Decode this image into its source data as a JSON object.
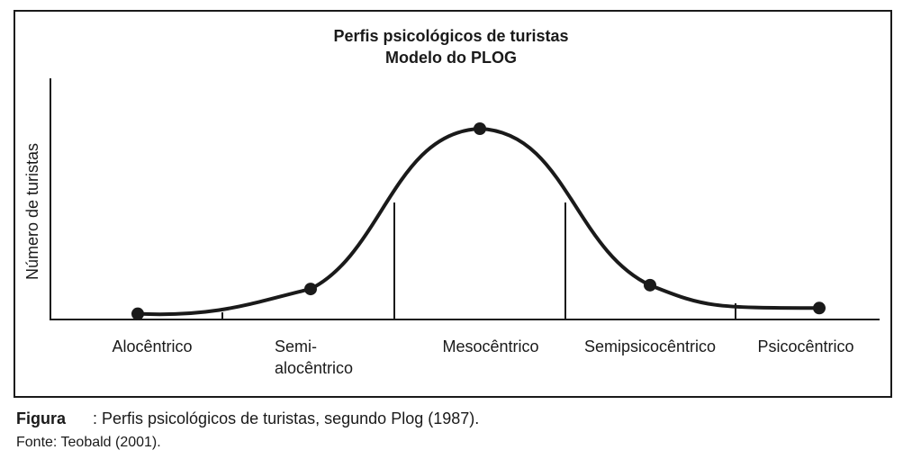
{
  "chart_data": {
    "type": "line",
    "title": "Perfis psicológicos de turistas",
    "subtitle": "Modelo do PLOG",
    "ylabel": "Número de turistas",
    "xlabel": "",
    "categories": [
      {
        "lines": [
          "Alocêntrico"
        ]
      },
      {
        "lines": [
          "Semi-",
          "alocêntrico"
        ]
      },
      {
        "lines": [
          "Mesocêntrico"
        ]
      },
      {
        "lines": [
          "Semipsicocêntrico"
        ]
      },
      {
        "lines": [
          "Psicocêntrico"
        ]
      }
    ],
    "points": [
      {
        "category": "Alocêntrico",
        "value": 3
      },
      {
        "category": "Semi-alocêntrico",
        "value": 16
      },
      {
        "category": "Mesocêntrico",
        "value": 100
      },
      {
        "category": "Semipsicocêntrico",
        "value": 18
      },
      {
        "category": "Psicocêntrico",
        "value": 6
      }
    ],
    "ylim": [
      0,
      110
    ],
    "grid": false,
    "legend": "none"
  },
  "caption": {
    "label": "Figura",
    "text": ": Perfis psicológicos de turistas, segundo Plog (1987)."
  },
  "source": "Fonte: Teobald (2001)."
}
